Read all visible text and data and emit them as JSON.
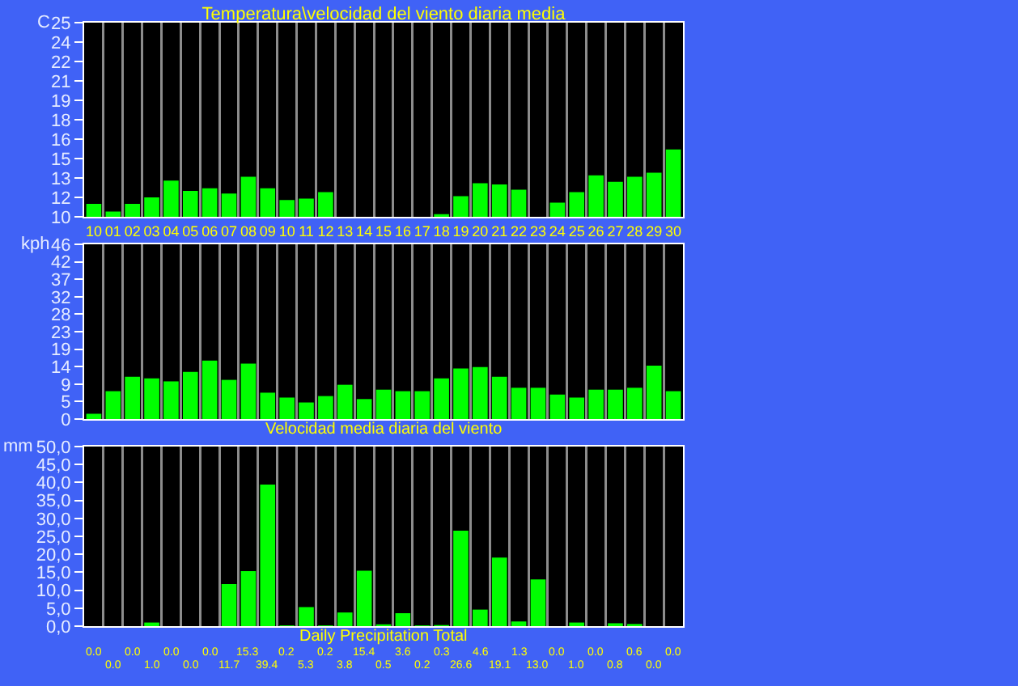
{
  "chart_data": [
    {
      "type": "bar",
      "title": "Temperatura\\velocidad del viento diaria media",
      "ylabel": "C",
      "categories": [
        "10",
        "01",
        "02",
        "03",
        "04",
        "05",
        "06",
        "07",
        "08",
        "09",
        "10",
        "11",
        "12",
        "13",
        "14",
        "15",
        "16",
        "17",
        "18",
        "19",
        "20",
        "21",
        "22",
        "23",
        "24",
        "25",
        "26",
        "27",
        "28",
        "29",
        "30"
      ],
      "values": [
        11.0,
        10.4,
        11.0,
        11.5,
        12.8,
        12.0,
        12.2,
        11.8,
        13.1,
        12.2,
        11.3,
        11.4,
        11.9,
        null,
        null,
        null,
        null,
        null,
        10.2,
        11.6,
        12.6,
        12.5,
        12.1,
        null,
        11.1,
        11.9,
        13.2,
        12.7,
        13.1,
        13.4,
        15.2
      ],
      "color": "#00ff00",
      "ylim": [
        10,
        25
      ],
      "yticks": [
        10,
        {
          "value": 11.5,
          "label": "12"
        },
        13,
        {
          "value": 14.5,
          "label": "15"
        },
        16,
        {
          "value": 17.5,
          "label": "18"
        },
        19,
        {
          "value": 20.5,
          "label": "21"
        },
        22,
        {
          "value": 23.5,
          "label": "24"
        },
        25
      ],
      "grid": "x"
    },
    {
      "type": "bar",
      "ylabel": "kph",
      "xlabel": "Velocidad media diaria del viento",
      "categories": [
        "10",
        "01",
        "02",
        "03",
        "04",
        "05",
        "06",
        "07",
        "08",
        "09",
        "10",
        "11",
        "12",
        "13",
        "14",
        "15",
        "16",
        "17",
        "18",
        "19",
        "20",
        "21",
        "22",
        "23",
        "24",
        "25",
        "26",
        "27",
        "28",
        "29",
        "30"
      ],
      "values": [
        1.4,
        7.4,
        11.2,
        10.8,
        10.0,
        12.5,
        15.5,
        10.4,
        14.7,
        7.0,
        5.7,
        4.4,
        6.1,
        9.1,
        5.3,
        7.8,
        7.4,
        7.4,
        10.8,
        13.4,
        13.8,
        11.2,
        8.3,
        8.3,
        6.5,
        5.7,
        7.8,
        7.8,
        8.3,
        14.2,
        7.4
      ],
      "color": "#00ff00",
      "ylim": [
        0,
        46.4
      ],
      "yticks": [
        0,
        {
          "value": 4.64,
          "label": "5"
        },
        {
          "value": 9.28,
          "label": "9"
        },
        {
          "value": 13.92,
          "label": "14"
        },
        {
          "value": 18.56,
          "label": "19"
        },
        {
          "value": 23.2,
          "label": "23"
        },
        {
          "value": 27.84,
          "label": "28"
        },
        {
          "value": 32.48,
          "label": "32"
        },
        {
          "value": 37.12,
          "label": "37"
        },
        {
          "value": 41.76,
          "label": "42"
        },
        {
          "value": 46.4,
          "label": "46"
        }
      ],
      "grid": "x",
      "tick_labels": "y"
    },
    {
      "type": "bar",
      "ylabel": "mm",
      "xlabel": "Daily Precipitation Total",
      "categories": [
        "10",
        "01",
        "02",
        "03",
        "04",
        "05",
        "06",
        "07",
        "08",
        "09",
        "10",
        "11",
        "12",
        "13",
        "14",
        "15",
        "16",
        "17",
        "18",
        "19",
        "20",
        "21",
        "22",
        "23",
        "24",
        "25",
        "26",
        "27",
        "28",
        "29",
        "30"
      ],
      "values": [
        0.0,
        0.0,
        0.0,
        1.0,
        0.0,
        0.0,
        0.0,
        11.7,
        15.3,
        39.4,
        0.2,
        5.3,
        0.2,
        3.8,
        15.4,
        0.5,
        3.6,
        0.2,
        0.3,
        26.6,
        4.6,
        19.1,
        1.3,
        13.0,
        0.0,
        1.0,
        0.0,
        0.8,
        0.6,
        0.0,
        0.0
      ],
      "value_labels": [
        "0.0",
        "0.0",
        "0.0",
        "1.0",
        "0.0",
        "0.0",
        "0.0",
        "11.7",
        "15.3",
        "39.4",
        "0.2",
        "5.3",
        "0.2",
        "3.8",
        "15.4",
        "0.5",
        "3.6",
        "0.2",
        "0.3",
        "26.6",
        "4.6",
        "19.1",
        "1.3",
        "13.0",
        "0.0",
        "1.0",
        "0.0",
        "0.8",
        "0.6",
        "0.0",
        "0.0"
      ],
      "color": "#00ff00",
      "ylim": [
        0,
        50
      ],
      "yticks": [
        {
          "value": 0,
          "label": "0,0"
        },
        {
          "value": 5,
          "label": "5,0"
        },
        {
          "value": 10,
          "label": "10,0"
        },
        {
          "value": 15,
          "label": "15,0"
        },
        {
          "value": 20,
          "label": "20,0"
        },
        {
          "value": 25,
          "label": "25,0"
        },
        {
          "value": 30,
          "label": "30,0"
        },
        {
          "value": 35,
          "label": "35,0"
        },
        {
          "value": 40,
          "label": "40,0"
        },
        {
          "value": 45,
          "label": "45,0"
        },
        {
          "value": 50,
          "label": "50,0"
        }
      ],
      "grid": "x",
      "tick_labels": "y"
    }
  ]
}
